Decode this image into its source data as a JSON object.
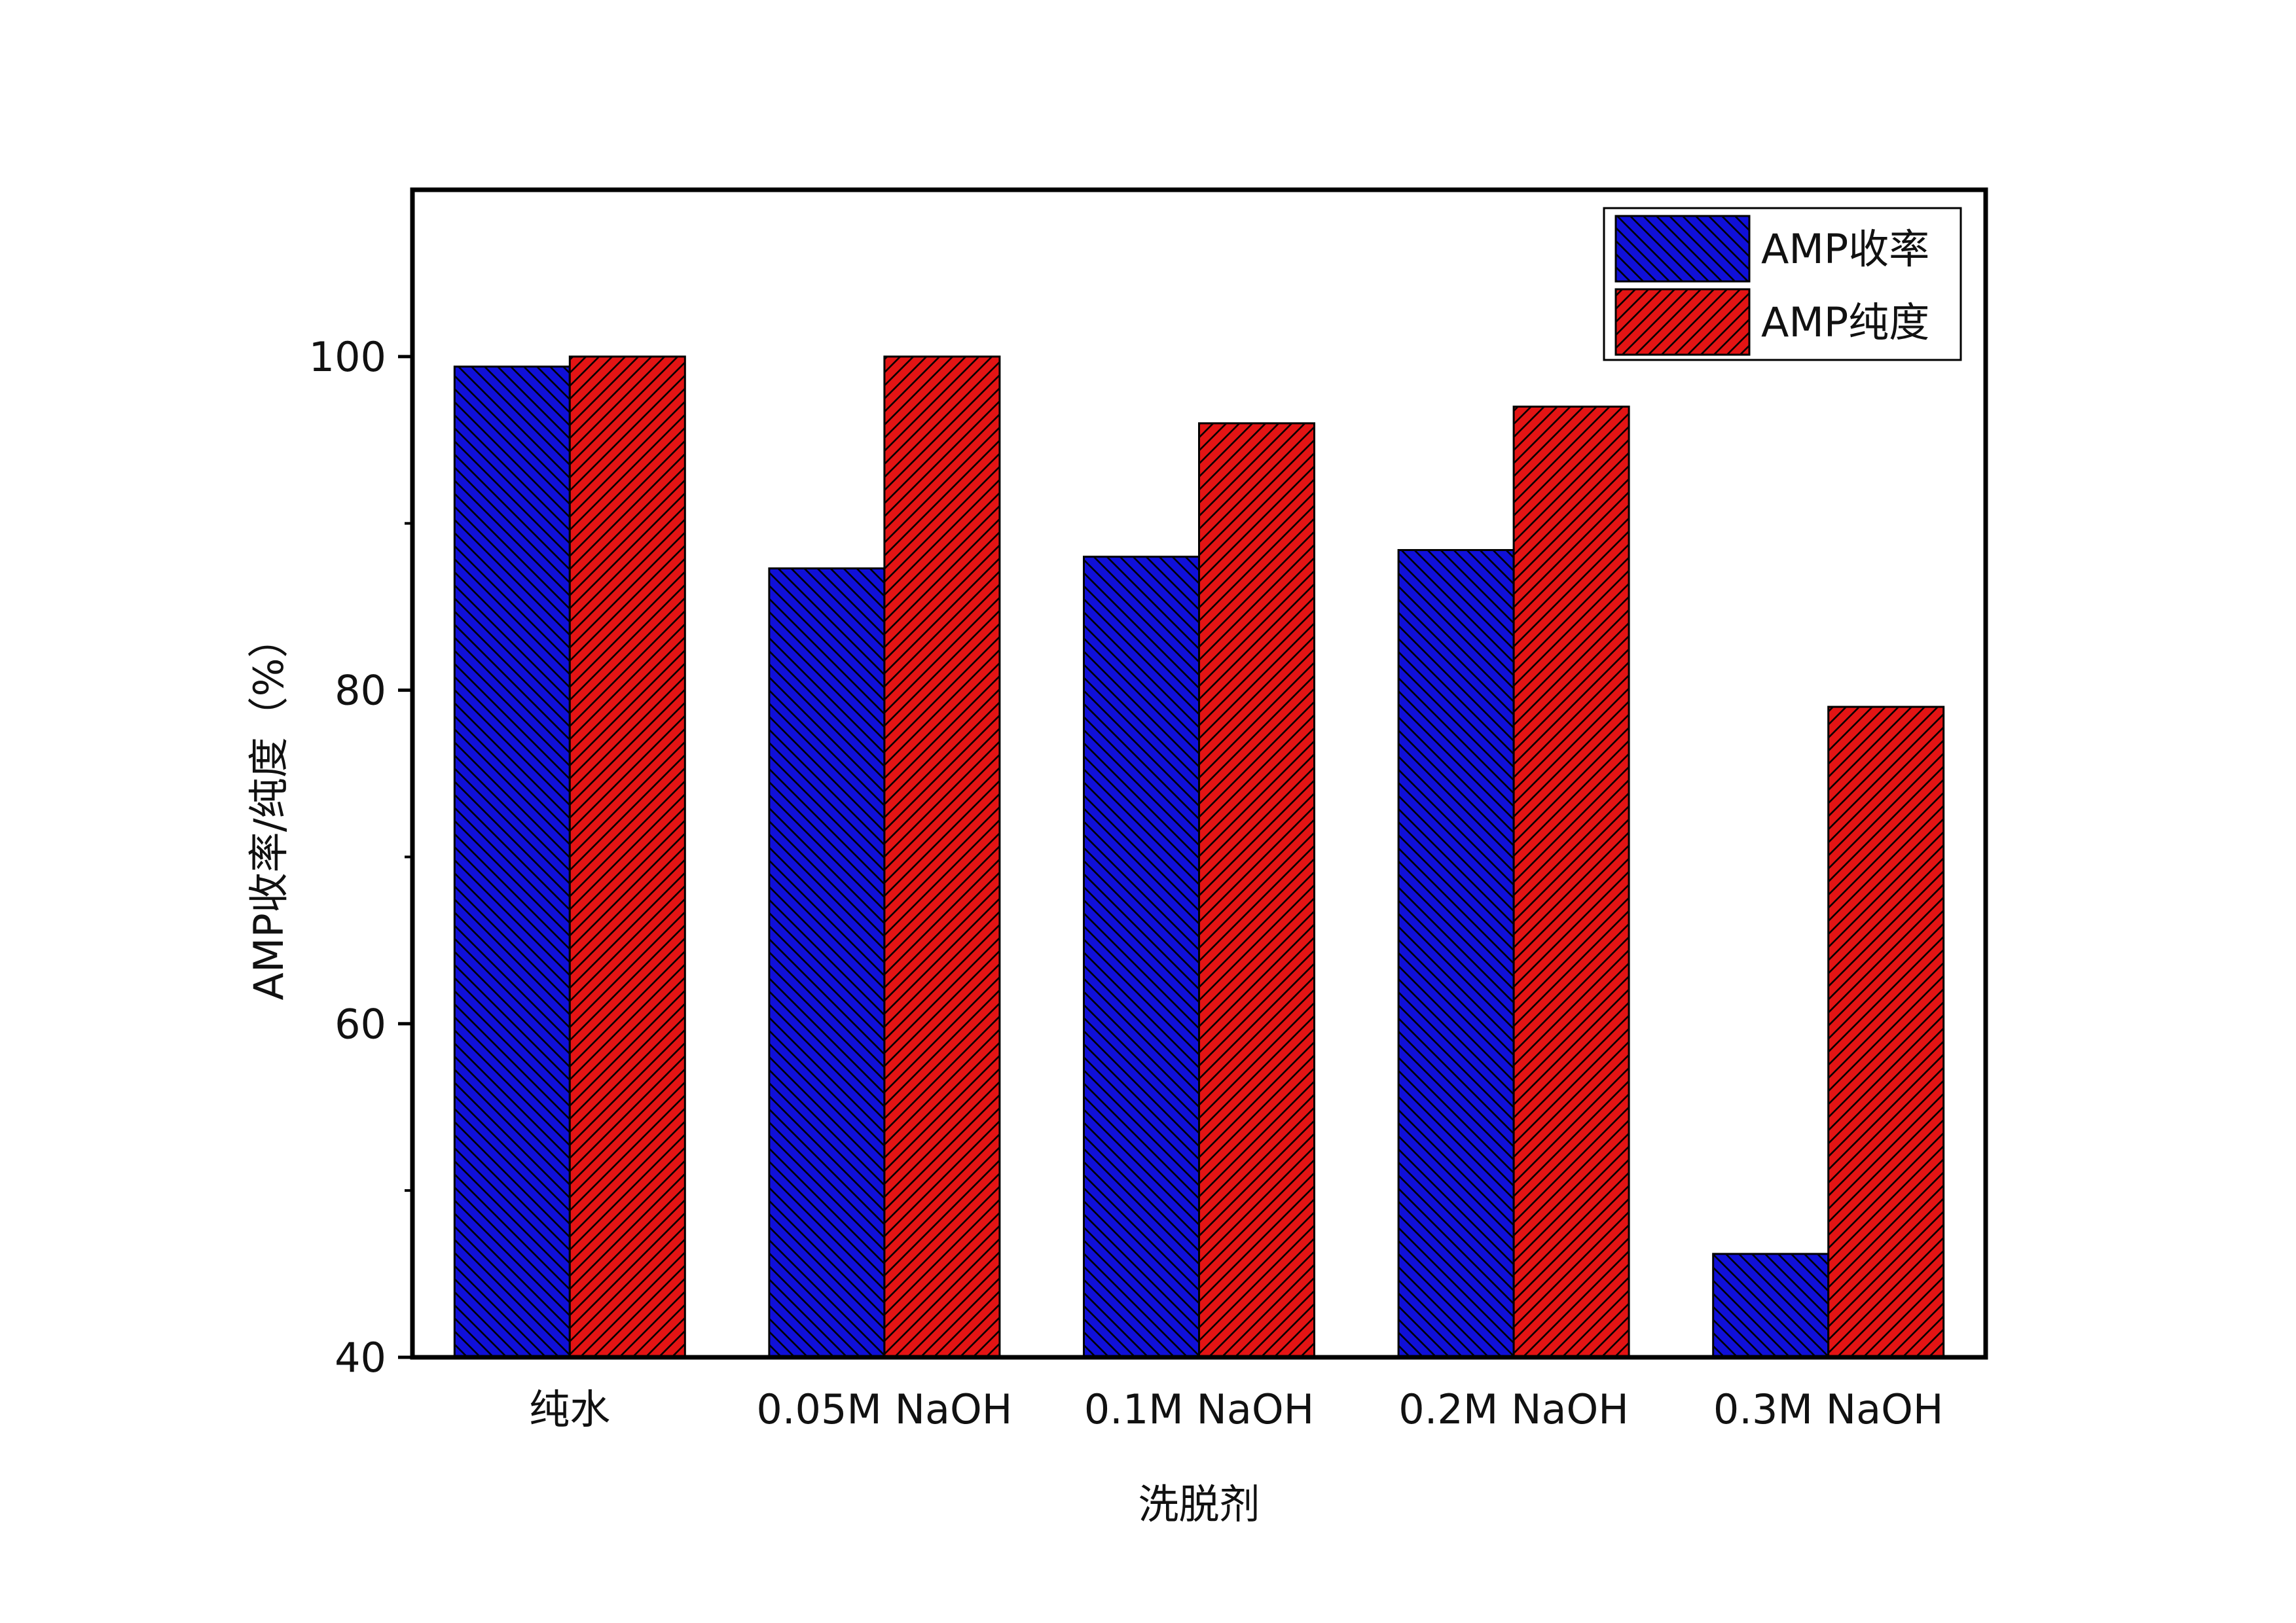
{
  "chart_data": {
    "type": "bar",
    "title": "",
    "xlabel": "洗脱剂",
    "ylabel": "AMP收率/纯度（%）",
    "categories": [
      "纯水",
      "0.05M NaOH",
      "0.1M NaOH",
      "0.2M NaOH",
      "0.3M NaOH"
    ],
    "series": [
      {
        "name": "AMP收率",
        "color": "#1010d8",
        "hatch": "backslash",
        "values": [
          99.4,
          87.3,
          88.0,
          88.4,
          46.2
        ]
      },
      {
        "name": "AMP纯度",
        "color": "#e31414",
        "hatch": "slash",
        "values": [
          100.0,
          100.0,
          96.0,
          97.0,
          79.0
        ]
      }
    ],
    "ylim": [
      40,
      110
    ],
    "y_ticks": [
      40,
      60,
      80,
      100
    ],
    "y_minor_ticks": [
      50,
      70,
      90
    ],
    "grid": false,
    "legend_position": "top-right"
  }
}
